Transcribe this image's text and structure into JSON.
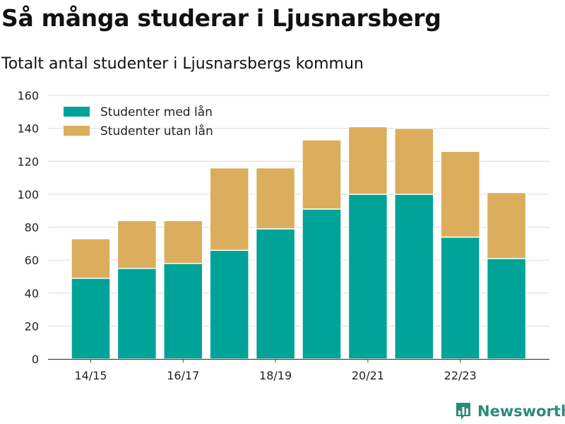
{
  "header": {
    "title": "Så många studerar i Ljusnarsberg",
    "subtitle": "Totalt antal studenter i Ljusnarsbergs kommun"
  },
  "brand": {
    "name": "Newsworthy",
    "icon": "bar-chart-logo-icon",
    "color": "#2e8a7c"
  },
  "chart_data": {
    "type": "bar",
    "stacked": true,
    "categories": [
      "14/15",
      "15/16",
      "16/17",
      "17/18",
      "18/19",
      "19/20",
      "20/21",
      "21/22",
      "22/23",
      "23/24"
    ],
    "tick_labels": [
      "14/15",
      "",
      "16/17",
      "",
      "18/19",
      "",
      "20/21",
      "",
      "22/23",
      ""
    ],
    "series": [
      {
        "name": "Studenter med lån",
        "color": "#00a398",
        "values": [
          49,
          55,
          58,
          66,
          79,
          91,
          100,
          100,
          74,
          61
        ]
      },
      {
        "name": "Studenter utan lån",
        "color": "#dbad5c",
        "values": [
          24,
          29,
          26,
          50,
          37,
          42,
          41,
          40,
          52,
          40
        ]
      }
    ],
    "title": "Så många studerar i Ljusnarsberg",
    "subtitle": "Totalt antal studenter i Ljusnarsbergs kommun",
    "xlabel": "",
    "ylabel": "",
    "ylim": [
      0,
      160
    ],
    "yticks": [
      0,
      20,
      40,
      60,
      80,
      100,
      120,
      140,
      160
    ],
    "grid": true,
    "legend_position": "top-left"
  }
}
